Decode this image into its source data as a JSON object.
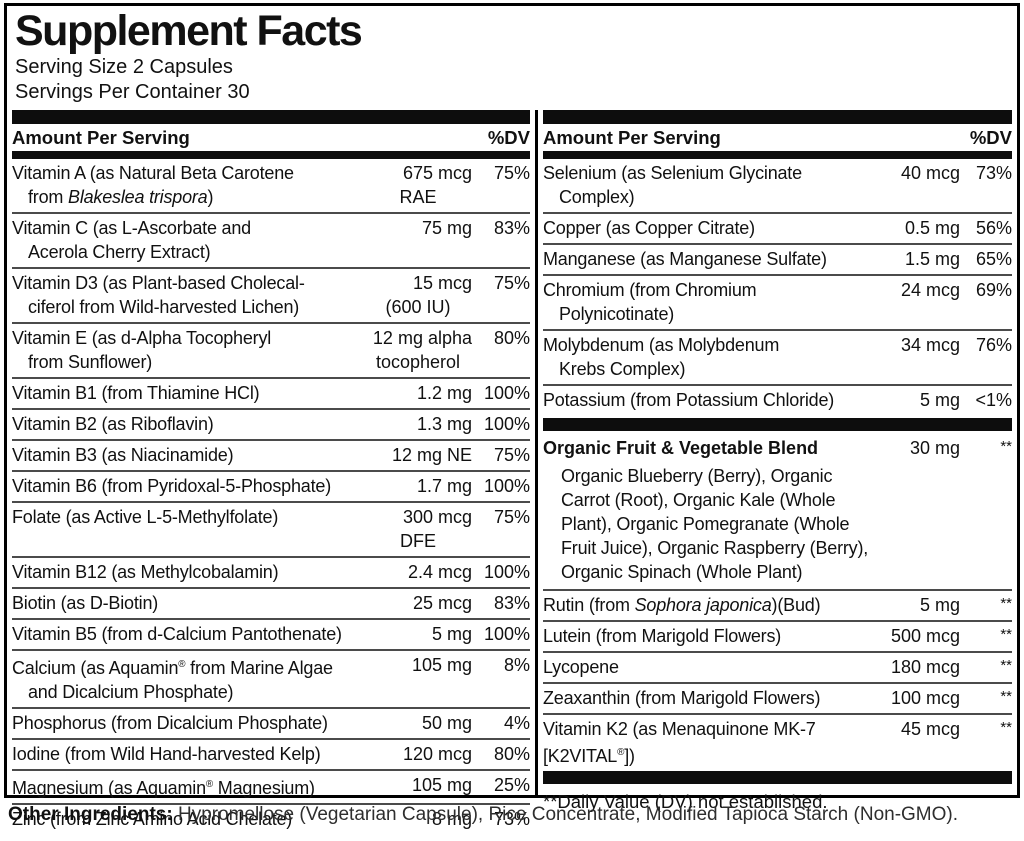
{
  "title": "Supplement Facts",
  "serving_size": "Serving Size 2 Capsules",
  "servings_per_container": "Servings Per Container 30",
  "column_header": {
    "amount_label": "Amount Per Serving",
    "dv_label": "%DV"
  },
  "colors": {
    "ink": "#000000",
    "bar": "#0d0d0d",
    "separator": "#4b4b4b",
    "background": "#ffffff"
  },
  "columns": [
    {
      "rows": [
        {
          "name": [
            {
              "t": "Vitamin A (as Natural Beta Carotene"
            },
            {
              "br": true
            },
            {
              "t": "from "
            },
            {
              "t": "Blakeslea trispora",
              "i": true
            },
            {
              "t": ")"
            }
          ],
          "amount": [
            "675 mcg",
            "RAE"
          ],
          "dv": "75%"
        },
        {
          "name": [
            {
              "t": "Vitamin C (as L-Ascorbate and"
            },
            {
              "br": true
            },
            {
              "t": "Acerola Cherry Extract)"
            }
          ],
          "amount": [
            "75 mg"
          ],
          "dv": "83%"
        },
        {
          "name": [
            {
              "t": "Vitamin D3 (as Plant-based Cholecal-"
            },
            {
              "br": true
            },
            {
              "t": "ciferol from Wild-harvested Lichen)"
            }
          ],
          "amount": [
            "15 mcg",
            "(600 IU)"
          ],
          "dv": "75%"
        },
        {
          "name": [
            {
              "t": "Vitamin E (as d-Alpha Tocopheryl"
            },
            {
              "br": true
            },
            {
              "t": "from Sunflower)"
            }
          ],
          "amount": [
            "12 mg alpha",
            "tocopherol"
          ],
          "dv": "80%"
        },
        {
          "name": [
            {
              "t": "Vitamin B1 (from Thiamine HCl)"
            }
          ],
          "amount": [
            "1.2 mg"
          ],
          "dv": "100%"
        },
        {
          "name": [
            {
              "t": "Vitamin B2 (as Riboflavin)"
            }
          ],
          "amount": [
            "1.3 mg"
          ],
          "dv": "100%"
        },
        {
          "name": [
            {
              "t": "Vitamin B3 (as Niacinamide)"
            }
          ],
          "amount": [
            "12 mg NE"
          ],
          "dv": "75%"
        },
        {
          "name": [
            {
              "t": "Vitamin B6 (from Pyridoxal-5-Phosphate)"
            }
          ],
          "amount": [
            "1.7 mg"
          ],
          "dv": "100%"
        },
        {
          "name": [
            {
              "t": "Folate (as Active L-5-Methylfolate)"
            }
          ],
          "amount": [
            "300 mcg",
            "DFE"
          ],
          "dv": "75%"
        },
        {
          "name": [
            {
              "t": "Vitamin B12 (as Methylcobalamin)"
            }
          ],
          "amount": [
            "2.4 mcg"
          ],
          "dv": "100%"
        },
        {
          "name": [
            {
              "t": "Biotin (as D-Biotin)"
            }
          ],
          "amount": [
            "25 mcg"
          ],
          "dv": "83%"
        },
        {
          "name": [
            {
              "t": "Vitamin B5 (from d-Calcium Pantothenate)"
            }
          ],
          "amount": [
            "5 mg"
          ],
          "dv": "100%"
        },
        {
          "name": [
            {
              "t": "Calcium (as Aquamin"
            },
            {
              "t": "®",
              "sup": true
            },
            {
              "t": " from Marine Algae"
            },
            {
              "br": true
            },
            {
              "t": "and Dicalcium Phosphate)"
            }
          ],
          "amount": [
            "105 mg"
          ],
          "dv": "8%"
        },
        {
          "name": [
            {
              "t": "Phosphorus (from Dicalcium Phosphate)"
            }
          ],
          "amount": [
            "50 mg"
          ],
          "dv": "4%"
        },
        {
          "name": [
            {
              "t": "Iodine (from Wild Hand-harvested Kelp)"
            }
          ],
          "amount": [
            "120 mcg"
          ],
          "dv": "80%"
        },
        {
          "name": [
            {
              "t": "Magnesium (as Aquamin"
            },
            {
              "t": "®",
              "sup": true
            },
            {
              "t": " Magnesium)"
            }
          ],
          "amount": [
            "105 mg"
          ],
          "dv": "25%"
        },
        {
          "name": [
            {
              "t": "Zinc (from Zinc Amino Acid Chelate)"
            }
          ],
          "amount": [
            "8 mg"
          ],
          "dv": "73%"
        }
      ]
    },
    {
      "rows": [
        {
          "name": [
            {
              "t": "Selenium (as Selenium Glycinate"
            },
            {
              "br": true
            },
            {
              "t": "Complex)"
            }
          ],
          "amount": [
            "40 mcg"
          ],
          "dv": "73%"
        },
        {
          "name": [
            {
              "t": "Copper (as Copper Citrate)"
            }
          ],
          "amount": [
            "0.5 mg"
          ],
          "dv": "56%"
        },
        {
          "name": [
            {
              "t": "Manganese (as Manganese Sulfate)"
            }
          ],
          "amount": [
            "1.5 mg"
          ],
          "dv": "65%"
        },
        {
          "name": [
            {
              "t": "Chromium (from Chromium"
            },
            {
              "br": true
            },
            {
              "t": "Polynicotinate)"
            }
          ],
          "amount": [
            "24 mcg"
          ],
          "dv": "69%"
        },
        {
          "name": [
            {
              "t": "Molybdenum (as Molybdenum"
            },
            {
              "br": true
            },
            {
              "t": "Krebs Complex)"
            }
          ],
          "amount": [
            "34 mcg"
          ],
          "dv": "76%"
        },
        {
          "name": [
            {
              "t": "Potassium (from Potassium Chloride)"
            }
          ],
          "amount": [
            "5 mg"
          ],
          "dv": "<1%"
        },
        {
          "type": "bar"
        },
        {
          "name": [
            {
              "t": "Organic Fruit & Vegetable Blend"
            }
          ],
          "amount": [
            "30 mg"
          ],
          "dv": "**",
          "bold": true
        },
        {
          "type": "desc",
          "lines": [
            "Organic Blueberry (Berry), Organic",
            "Carrot (Root), Organic Kale (Whole",
            "Plant), Organic Pomegranate (Whole",
            "Fruit Juice), Organic Raspberry (Berry),",
            "Organic Spinach (Whole Plant)"
          ]
        },
        {
          "name": [
            {
              "t": "Rutin (from "
            },
            {
              "t": "Sophora japonica",
              "i": true
            },
            {
              "t": ")(Bud)"
            }
          ],
          "amount": [
            "5 mg"
          ],
          "dv": "**"
        },
        {
          "name": [
            {
              "t": "Lutein (from Marigold Flowers)"
            }
          ],
          "amount": [
            "500 mcg"
          ],
          "dv": "**"
        },
        {
          "name": [
            {
              "t": "Lycopene"
            }
          ],
          "amount": [
            "180 mcg"
          ],
          "dv": "**"
        },
        {
          "name": [
            {
              "t": "Zeaxanthin (from Marigold Flowers)"
            }
          ],
          "amount": [
            "100 mcg"
          ],
          "dv": "**"
        },
        {
          "name": [
            {
              "t": "Vitamin K2 (as Menaquinone MK-7"
            },
            {
              "br": true
            },
            {
              "t": "[K2VITAL"
            },
            {
              "t": "®",
              "sup": true
            },
            {
              "t": "])"
            }
          ],
          "amount": [
            "45 mcg"
          ],
          "dv": "**",
          "flush": true
        },
        {
          "type": "bar",
          "push": true
        },
        {
          "type": "note",
          "text": "**Daily Value (DV) not established."
        }
      ]
    }
  ],
  "footer": {
    "label": "Other Ingredients:",
    "text": " Hypromellose (Vegetarian Capsule), Rice Concentrate, Modified Tapioca Starch (Non-GMO)."
  }
}
